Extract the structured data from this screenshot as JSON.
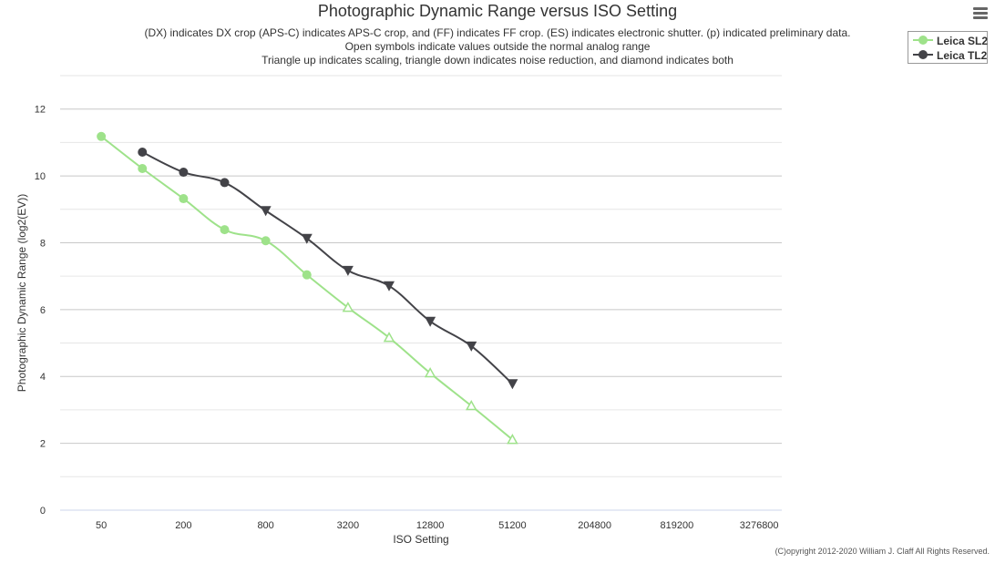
{
  "chart_data": {
    "type": "line",
    "title": "Photographic Dynamic Range versus ISO Setting",
    "subtitle_lines": [
      "(DX) indicates DX crop (APS-C) indicates APS-C crop, and (FF) indicates FF crop. (ES) indicates electronic shutter. (p) indicated preliminary data.",
      "Open symbols indicate values outside the normal analog range",
      "Triangle up indicates scaling, triangle down indicates noise reduction, and diamond indicates both"
    ],
    "xlabel": "ISO Setting",
    "ylabel": "Photographic Dynamic Range (log2(EV))",
    "x_scale": "log2",
    "x_ticks": [
      50,
      200,
      800,
      3200,
      12800,
      51200,
      204800,
      819200,
      3276800
    ],
    "x_tick_labels": [
      "50",
      "200",
      "800",
      "3200",
      "12800",
      "51200",
      "204800",
      "819200",
      "3276800"
    ],
    "xlim": [
      25,
      4800000
    ],
    "ylim": [
      0,
      13
    ],
    "y_ticks": [
      0,
      2,
      4,
      6,
      8,
      10,
      12
    ],
    "y_tick_labels": [
      "0",
      "2",
      "4",
      "6",
      "8",
      "10",
      "12"
    ],
    "grid": true,
    "legend_position": "top-right",
    "series": [
      {
        "name": "Leica SL2",
        "color": "#9ee28a",
        "points": [
          {
            "x": 50,
            "y": 11.18,
            "marker": "circle"
          },
          {
            "x": 100,
            "y": 10.22,
            "marker": "circle"
          },
          {
            "x": 200,
            "y": 9.32,
            "marker": "circle"
          },
          {
            "x": 400,
            "y": 8.39,
            "marker": "circle"
          },
          {
            "x": 800,
            "y": 8.06,
            "marker": "circle"
          },
          {
            "x": 1600,
            "y": 7.04,
            "marker": "circle"
          },
          {
            "x": 3200,
            "y": 6.06,
            "marker": "triangle-up-open"
          },
          {
            "x": 6400,
            "y": 5.16,
            "marker": "triangle-up-open"
          },
          {
            "x": 12800,
            "y": 4.1,
            "marker": "triangle-up-open"
          },
          {
            "x": 25600,
            "y": 3.12,
            "marker": "triangle-up-open"
          },
          {
            "x": 51200,
            "y": 2.11,
            "marker": "triangle-up-open"
          }
        ]
      },
      {
        "name": "Leica TL2",
        "color": "#434348",
        "points": [
          {
            "x": 100,
            "y": 10.71,
            "marker": "circle"
          },
          {
            "x": 200,
            "y": 10.11,
            "marker": "circle"
          },
          {
            "x": 400,
            "y": 9.8,
            "marker": "circle"
          },
          {
            "x": 800,
            "y": 8.96,
            "marker": "triangle-down"
          },
          {
            "x": 1600,
            "y": 8.13,
            "marker": "triangle-down"
          },
          {
            "x": 3200,
            "y": 7.17,
            "marker": "triangle-down"
          },
          {
            "x": 6400,
            "y": 6.71,
            "marker": "triangle-down"
          },
          {
            "x": 12800,
            "y": 5.65,
            "marker": "triangle-down"
          },
          {
            "x": 25600,
            "y": 4.91,
            "marker": "triangle-down"
          },
          {
            "x": 51200,
            "y": 3.78,
            "marker": "triangle-down"
          }
        ]
      }
    ]
  },
  "copyright": "(C)opyright 2012-2020 William J. Claff All Rights Reserved.",
  "menu_icon": "hamburger-menu-icon"
}
